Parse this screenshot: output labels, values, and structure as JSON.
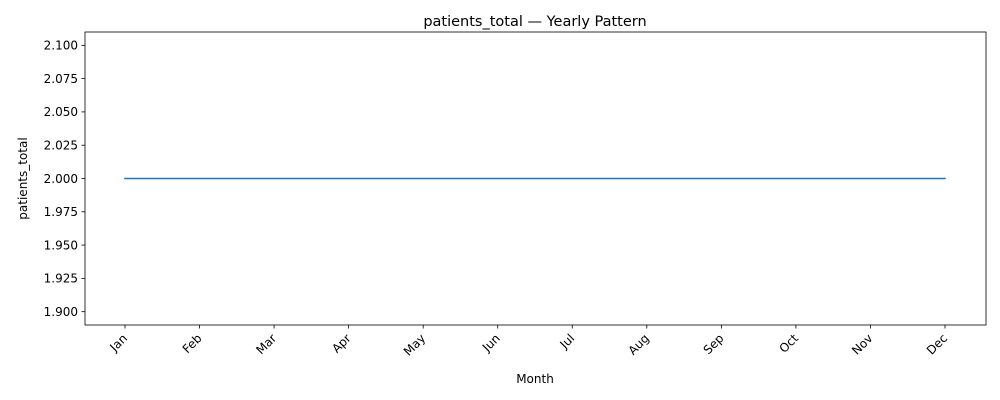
{
  "chart_data": {
    "type": "line",
    "title": "patients_total — Yearly Pattern",
    "xlabel": "Month",
    "ylabel": "patients_total",
    "categories": [
      "Jan",
      "Feb",
      "Mar",
      "Apr",
      "May",
      "Jun",
      "Jul",
      "Aug",
      "Sep",
      "Oct",
      "Nov",
      "Dec"
    ],
    "series": [
      {
        "values": [
          2.0,
          2.0,
          2.0,
          2.0,
          2.0,
          2.0,
          2.0,
          2.0,
          2.0,
          2.0,
          2.0,
          2.0
        ],
        "color": "#1f77b4"
      }
    ],
    "yticks": [
      "1.900",
      "1.925",
      "1.950",
      "1.975",
      "2.000",
      "2.025",
      "2.050",
      "2.075",
      "2.100"
    ],
    "ylim": [
      1.89,
      2.11
    ],
    "grid": false,
    "legend": "none"
  }
}
